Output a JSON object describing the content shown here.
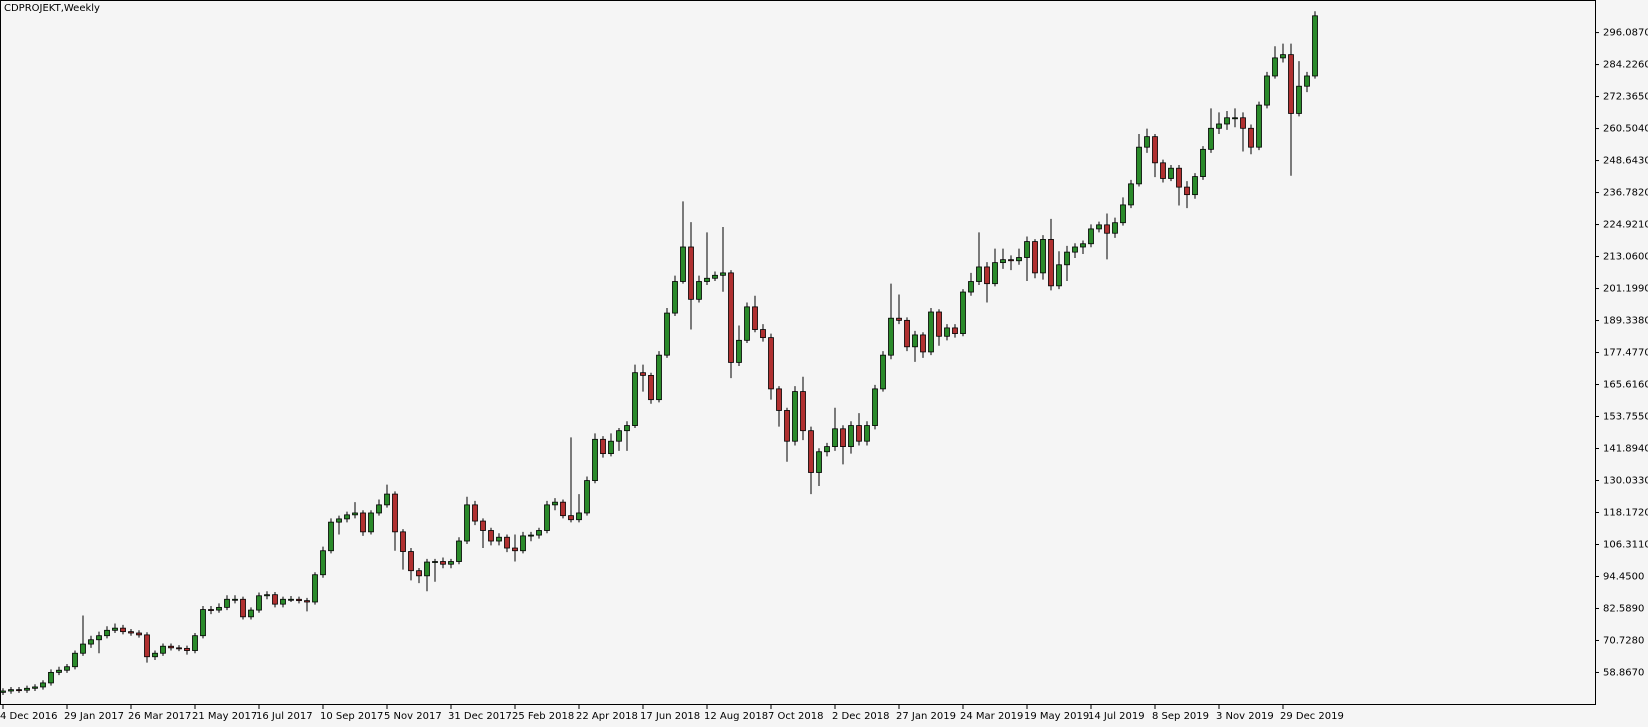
{
  "chart_data": {
    "type": "candlestick",
    "title": "CDPROJEKT,Weekly",
    "x": [
      "4 Dec 2016",
      null,
      null,
      null,
      null,
      null,
      null,
      null,
      "29 Jan 2017",
      null,
      null,
      null,
      null,
      null,
      null,
      null,
      "26 Mar 2017",
      null,
      null,
      null,
      null,
      null,
      null,
      null,
      "21 May 2017",
      null,
      null,
      null,
      null,
      null,
      null,
      null,
      "16 Jul 2017",
      null,
      null,
      null,
      null,
      null,
      null,
      null,
      "10 Sep 2017",
      null,
      null,
      null,
      null,
      null,
      null,
      null,
      "5 Nov 2017",
      null,
      null,
      null,
      null,
      null,
      null,
      null,
      "31 Dec 2017",
      null,
      null,
      null,
      null,
      null,
      null,
      null,
      "25 Feb 2018",
      null,
      null,
      null,
      null,
      null,
      null,
      null,
      "22 Apr 2018",
      null,
      null,
      null,
      null,
      null,
      null,
      null,
      "17 Jun 2018",
      null,
      null,
      null,
      null,
      null,
      null,
      null,
      "12 Aug 2018",
      null,
      null,
      null,
      null,
      null,
      null,
      null,
      "7 Oct 2018",
      null,
      null,
      null,
      null,
      null,
      null,
      null,
      "2 Dec 2018",
      null,
      null,
      null,
      null,
      null,
      null,
      null,
      "27 Jan 2019",
      null,
      null,
      null,
      null,
      null,
      null,
      null,
      "24 Mar 2019",
      null,
      null,
      null,
      null,
      null,
      null,
      null,
      "19 May 2019",
      null,
      null,
      null,
      null,
      null,
      null,
      null,
      "14 Jul 2019",
      null,
      null,
      null,
      null,
      null,
      null,
      null,
      "8 Sep 2019",
      null,
      null,
      null,
      null,
      null,
      null,
      null,
      "3 Nov 2019",
      null,
      null,
      null,
      null,
      null,
      null,
      null,
      "29 Dec 2019",
      null,
      null,
      null,
      null
    ],
    "open": [
      51.5,
      52.0,
      52.5,
      52.3,
      53.0,
      53.5,
      55.0,
      58.9,
      59.7,
      61.0,
      66.0,
      69.4,
      71.0,
      72.5,
      74.5,
      75.3,
      74.0,
      73.5,
      72.8,
      64.7,
      66.0,
      68.6,
      68.0,
      67.8,
      67.0,
      72.5,
      82.2,
      82.0,
      83.0,
      86.0,
      86.0,
      79.5,
      82.0,
      87.3,
      87.7,
      84.2,
      86.0,
      86.0,
      85.5,
      85.0,
      95.1,
      104.0,
      114.6,
      115.8,
      117.3,
      118.0,
      111.0,
      118.0,
      121.0,
      125.0,
      111.0,
      103.7,
      96.6,
      94.7,
      99.8,
      100.0,
      99.0,
      100.0,
      107.6,
      121.0,
      115.0,
      111.5,
      107.6,
      109.0,
      105.0,
      104.0,
      109.5,
      109.8,
      111.5,
      121.0,
      122.0,
      117.0,
      115.5,
      118.0,
      130.0,
      145.3,
      140.0,
      144.6,
      148.5,
      150.4,
      170.0,
      169.0,
      160.0,
      176.5,
      192.1,
      203.8,
      216.6,
      197.2,
      203.8,
      205.0,
      206.1,
      207.0,
      173.8,
      182.0,
      194.4,
      186.0,
      183.0,
      164.0,
      156.0,
      144.6,
      163.0,
      148.5,
      133.0,
      140.7,
      142.6,
      149.2,
      142.6,
      150.4,
      144.6,
      150.4,
      164.0,
      176.5,
      190.2,
      189.4,
      179.6,
      184.0,
      177.7,
      192.5,
      183.5,
      186.6,
      184.5,
      199.9,
      203.8,
      209.2,
      203.0,
      210.8,
      211.9,
      211.5,
      212.7,
      218.6,
      207.0,
      219.4,
      202.2,
      210.0,
      214.7,
      216.6,
      217.8,
      223.3,
      224.8,
      221.7,
      225.6,
      232.2,
      240.0,
      253.6,
      257.5,
      247.8,
      242.0,
      245.8,
      238.8,
      236.0,
      242.7,
      252.8,
      260.6,
      262.2,
      264.5,
      264.5,
      260.6,
      253.6,
      269.2,
      280.0,
      286.7,
      287.9,
      266.1,
      276.2,
      280.0
    ],
    "high": [
      53.0,
      53.5,
      53.5,
      54.0,
      54.5,
      56.0,
      60.0,
      61.0,
      62.0,
      67.0,
      80.0,
      72.5,
      74.0,
      76.0,
      77.0,
      76.5,
      75.0,
      74.5,
      73.8,
      67.0,
      69.6,
      69.6,
      69.0,
      68.8,
      73.5,
      83.5,
      83.5,
      84.5,
      87.5,
      87.5,
      87.0,
      83.0,
      88.5,
      89.0,
      88.7,
      87.0,
      87.2,
      87.0,
      86.5,
      96.0,
      105.5,
      116.0,
      117.0,
      118.5,
      122.0,
      119.0,
      119.0,
      123.0,
      128.5,
      126.0,
      112.0,
      105.0,
      97.6,
      101.0,
      101.0,
      101.5,
      101.0,
      109.0,
      124.0,
      122.5,
      116.0,
      112.5,
      110.5,
      110.0,
      110.0,
      111.0,
      111.0,
      112.5,
      122.5,
      123.5,
      123.0,
      146.0,
      125.0,
      131.5,
      147.5,
      146.5,
      147.5,
      149.5,
      152.0,
      173.0,
      173.0,
      170.0,
      178.0,
      194.0,
      206.0,
      233.5,
      225.8,
      206.0,
      222.0,
      207.5,
      224.0,
      208.0,
      187.5,
      196.0,
      198.5,
      188.0,
      184.5,
      165.0,
      157.0,
      165.0,
      168.5,
      150.0,
      142.0,
      144.0,
      157.0,
      150.5,
      152.0,
      155.0,
      152.0,
      165.5,
      178.0,
      203.0,
      199.0,
      190.5,
      185.5,
      185.0,
      194.0,
      193.5,
      188.0,
      188.0,
      201.0,
      207.0,
      222.0,
      211.0,
      216.0,
      216.0,
      213.5,
      216.0,
      220.5,
      219.5,
      221.0,
      227.0,
      215.0,
      217.0,
      218.0,
      219.0,
      225.0,
      226.0,
      229.0,
      227.5,
      235.0,
      241.5,
      258.5,
      260.5,
      258.5,
      249.0,
      247.0,
      247.0,
      241.0,
      244.0,
      254.0,
      268.0,
      266.5,
      267.0,
      268.0,
      266.5,
      262.0,
      270.5,
      281.5,
      291.0,
      292.0,
      292.0,
      285.5,
      281.5,
      304.0
    ],
    "low": [
      50.5,
      51.0,
      51.3,
      51.3,
      52.0,
      52.5,
      54.0,
      57.9,
      58.7,
      60.0,
      65.0,
      68.0,
      66.0,
      71.5,
      73.5,
      73.0,
      72.5,
      71.8,
      62.5,
      63.5,
      65.0,
      67.0,
      66.8,
      65.5,
      66.0,
      71.5,
      80.5,
      81.0,
      82.0,
      84.5,
      78.5,
      78.5,
      81.0,
      86.0,
      83.0,
      83.0,
      85.0,
      84.5,
      81.5,
      84.0,
      94.0,
      103.0,
      110.0,
      114.5,
      116.0,
      109.5,
      110.0,
      117.0,
      120.0,
      104.0,
      97.0,
      93.0,
      92.0,
      89.0,
      92.5,
      97.5,
      97.5,
      99.0,
      106.5,
      113.5,
      105.0,
      106.0,
      106.0,
      103.5,
      100.0,
      103.0,
      107.5,
      108.5,
      110.5,
      119.0,
      116.0,
      114.5,
      114.5,
      117.0,
      129.0,
      138.5,
      139.0,
      141.0,
      141.0,
      149.5,
      163.0,
      158.5,
      159.0,
      175.5,
      191.0,
      203.0,
      186.0,
      196.0,
      202.5,
      204.0,
      200.0,
      168.0,
      172.5,
      181.0,
      185.0,
      181.5,
      160.0,
      150.0,
      137.0,
      143.0,
      145.0,
      125.0,
      128.0,
      139.0,
      141.0,
      136.0,
      140.0,
      143.0,
      143.0,
      149.0,
      163.0,
      175.0,
      188.0,
      178.0,
      174.0,
      175.5,
      176.5,
      180.0,
      182.0,
      183.0,
      183.5,
      198.5,
      202.5,
      196.0,
      202.0,
      208.5,
      208.0,
      210.0,
      204.0,
      205.0,
      204.5,
      200.5,
      201.0,
      204.0,
      212.5,
      214.0,
      216.5,
      222.0,
      212.0,
      220.0,
      224.5,
      231.0,
      239.0,
      251.5,
      242.5,
      240.5,
      241.0,
      232.0,
      231.0,
      234.5,
      241.5,
      251.5,
      258.5,
      260.0,
      261.0,
      252.0,
      251.0,
      252.5,
      268.0,
      279.0,
      285.0,
      243.0,
      265.0,
      274.0,
      279.0
    ],
    "close": [
      52.0,
      52.5,
      52.3,
      53.0,
      53.5,
      55.0,
      58.9,
      59.7,
      61.0,
      66.0,
      69.4,
      71.0,
      72.5,
      74.5,
      75.3,
      74.0,
      73.5,
      72.8,
      64.7,
      66.0,
      68.6,
      68.0,
      67.8,
      67.0,
      72.5,
      82.2,
      82.0,
      83.0,
      86.0,
      86.0,
      79.5,
      82.0,
      87.3,
      87.7,
      84.2,
      86.0,
      86.0,
      85.5,
      85.0,
      95.1,
      104.0,
      114.6,
      115.8,
      117.3,
      118.0,
      111.0,
      118.0,
      121.0,
      125.0,
      111.0,
      103.7,
      96.6,
      94.7,
      99.8,
      100.0,
      99.0,
      100.0,
      107.6,
      121.0,
      115.0,
      111.5,
      107.6,
      109.0,
      105.0,
      104.0,
      109.5,
      109.8,
      111.5,
      121.0,
      122.0,
      117.0,
      115.5,
      118.0,
      130.0,
      145.3,
      140.0,
      144.6,
      148.5,
      150.4,
      170.0,
      169.0,
      160.0,
      176.5,
      192.1,
      203.8,
      216.6,
      197.2,
      203.8,
      205.0,
      206.1,
      207.0,
      173.8,
      182.0,
      194.4,
      186.0,
      183.0,
      164.0,
      156.0,
      144.6,
      163.0,
      148.5,
      133.0,
      140.7,
      142.6,
      149.2,
      142.6,
      150.4,
      144.6,
      150.4,
      164.0,
      176.5,
      190.2,
      189.4,
      179.6,
      184.0,
      177.7,
      192.5,
      183.5,
      186.6,
      184.5,
      199.9,
      203.8,
      209.2,
      203.0,
      210.8,
      211.9,
      211.5,
      212.7,
      218.6,
      207.0,
      219.4,
      202.2,
      210.0,
      214.7,
      216.6,
      217.8,
      223.3,
      224.8,
      221.7,
      225.6,
      232.2,
      240.0,
      253.6,
      257.5,
      247.8,
      242.0,
      245.8,
      238.8,
      236.0,
      242.7,
      252.8,
      260.6,
      262.2,
      264.5,
      264.5,
      260.6,
      253.6,
      269.2,
      280.0,
      286.7,
      287.9,
      266.1,
      276.2,
      280.0,
      302.3
    ],
    "up_color": "#2a8a2a",
    "down_color": "#b03030",
    "ylim": [
      47.18,
      308.16
    ],
    "yticks": [
      {
        "value": 58.867,
        "label": "58.8670"
      },
      {
        "value": 70.728,
        "label": "70.7280"
      },
      {
        "value": 82.589,
        "label": "82.5890"
      },
      {
        "value": 94.45,
        "label": "94.4500"
      },
      {
        "value": 106.311,
        "label": "106.3110"
      },
      {
        "value": 118.172,
        "label": "118.1720"
      },
      {
        "value": 130.033,
        "label": "130.0330"
      },
      {
        "value": 141.894,
        "label": "141.8940"
      },
      {
        "value": 153.755,
        "label": "153.7550"
      },
      {
        "value": 165.616,
        "label": "165.6160"
      },
      {
        "value": 177.477,
        "label": "177.4770"
      },
      {
        "value": 189.338,
        "label": "189.3380"
      },
      {
        "value": 201.199,
        "label": "201.1990"
      },
      {
        "value": 213.06,
        "label": "213.0600"
      },
      {
        "value": 224.921,
        "label": "224.9210"
      },
      {
        "value": 236.782,
        "label": "236.7820"
      },
      {
        "value": 248.643,
        "label": "248.6430"
      },
      {
        "value": 260.504,
        "label": "260.5040"
      },
      {
        "value": 272.365,
        "label": "272.3650"
      },
      {
        "value": 284.226,
        "label": "284.2260"
      },
      {
        "value": 296.087,
        "label": "296.0870"
      }
    ],
    "grid": false
  }
}
